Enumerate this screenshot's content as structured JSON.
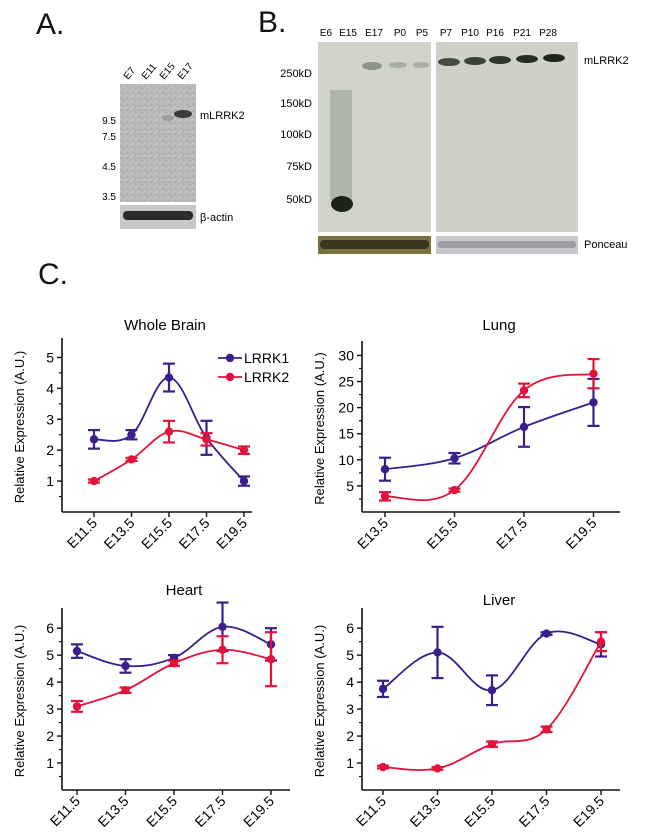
{
  "panels": {
    "a": "A.",
    "b": "B.",
    "c": "C."
  },
  "blot_a": {
    "lanes": [
      "E7",
      "E11",
      "E15",
      "E17"
    ],
    "markers": [
      "9.5",
      "7.5",
      "4.5",
      "3.5"
    ],
    "band_label": "mLRRK2",
    "loading_label": "β-actin"
  },
  "blot_b": {
    "lanes": [
      "E6",
      "E15",
      "E17",
      "P0",
      "P5",
      "P7",
      "P10",
      "P16",
      "P21",
      "P28"
    ],
    "markers": [
      "250kD",
      "150kD",
      "100kD",
      "75kD",
      "50kD"
    ],
    "band_label": "mLRRK2",
    "loading_label": "Ponceau"
  },
  "colors": {
    "lrrk1": "#3a1f8c",
    "lrrk2": "#e3123b"
  },
  "chart_data": [
    {
      "type": "line",
      "title": "Whole Brain",
      "ylabel": "Relative Expression (A.U.)",
      "xlabel": "",
      "categories": [
        "E11.5",
        "E13.5",
        "E15.5",
        "E17.5",
        "E19.5"
      ],
      "ylim": [
        0,
        5.5
      ],
      "yticks": [
        1,
        2,
        3,
        4,
        5
      ],
      "legend": "top-left",
      "series": [
        {
          "name": "LRRK1",
          "values": [
            2.35,
            2.5,
            4.35,
            2.4,
            1.0
          ],
          "errors": [
            0.3,
            0.15,
            0.45,
            0.55,
            0.15
          ]
        },
        {
          "name": "LRRK2",
          "values": [
            1.0,
            1.7,
            2.6,
            2.35,
            2.0
          ],
          "errors": [
            0.05,
            0.05,
            0.35,
            0.2,
            0.12
          ]
        }
      ]
    },
    {
      "type": "line",
      "title": "Lung",
      "ylabel": "Relative Expression (A.U.)",
      "xlabel": "",
      "categories": [
        "E13.5",
        "E15.5",
        "E17.5",
        "E19.5"
      ],
      "ylim": [
        0,
        32
      ],
      "yticks": [
        5,
        10,
        15,
        20,
        25,
        30
      ],
      "series": [
        {
          "name": "LRRK1",
          "values": [
            8.2,
            10.3,
            16.3,
            21.0
          ],
          "errors": [
            2.2,
            1.0,
            3.8,
            4.5
          ]
        },
        {
          "name": "LRRK2",
          "values": [
            3.0,
            4.2,
            23.3,
            26.5
          ],
          "errors": [
            0.8,
            0.3,
            1.3,
            2.8
          ]
        }
      ]
    },
    {
      "type": "line",
      "title": "Heart",
      "ylabel": "Relative Expression (A.U.)",
      "xlabel": "",
      "categories": [
        "E11.5",
        "E13.5",
        "E15.5",
        "E17.5",
        "E19.5"
      ],
      "ylim": [
        0,
        6.6
      ],
      "yticks": [
        1,
        2,
        3,
        4,
        5,
        6
      ],
      "series": [
        {
          "name": "LRRK1",
          "values": [
            5.15,
            4.6,
            4.9,
            6.05,
            5.4
          ],
          "errors": [
            0.25,
            0.25,
            0.1,
            0.9,
            0.6
          ]
        },
        {
          "name": "LRRK2",
          "values": [
            3.1,
            3.7,
            4.7,
            5.2,
            4.85
          ],
          "errors": [
            0.2,
            0.1,
            0.1,
            0.5,
            1.0
          ]
        }
      ]
    },
    {
      "type": "line",
      "title": "Liver",
      "ylabel": "Relative Expression (A.U.)",
      "xlabel": "",
      "categories": [
        "E11.5",
        "E13.5",
        "E15.5",
        "E17.5",
        "E19.5"
      ],
      "ylim": [
        0,
        6.6
      ],
      "yticks": [
        1,
        2,
        3,
        4,
        5,
        6
      ],
      "series": [
        {
          "name": "LRRK1",
          "values": [
            3.75,
            5.1,
            3.7,
            5.8,
            5.4
          ],
          "errors": [
            0.3,
            0.95,
            0.55,
            0.05,
            0.45
          ]
        },
        {
          "name": "LRRK2",
          "values": [
            0.85,
            0.8,
            1.7,
            2.25,
            5.5
          ],
          "errors": [
            0.05,
            0.05,
            0.1,
            0.1,
            0.35
          ]
        }
      ]
    }
  ]
}
